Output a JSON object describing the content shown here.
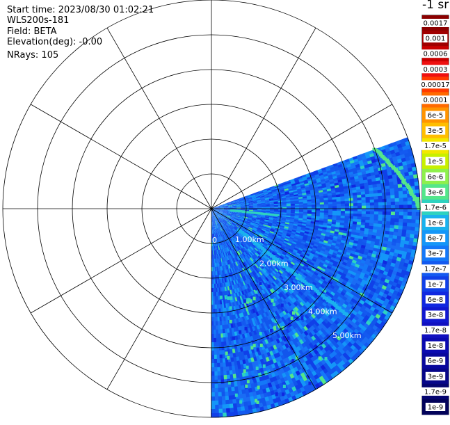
{
  "header": {
    "start_time": "Start time: 2023/08/30 01:02:21",
    "instrument": "WLS200s-181",
    "field": "Field: BETA",
    "elevation": "Elevation(deg): -0.00",
    "nrays": "NRays: 105"
  },
  "colorbar": {
    "unit_label": "-1 sr",
    "labels": [
      "0.0017",
      "0.001",
      "0.0006",
      "0.0003",
      "0.00017",
      "0.0001",
      "6e-5",
      "3e-5",
      "1.7e-5",
      "1e-5",
      "6e-6",
      "3e-6",
      "1.7e-6",
      "1e-6",
      "6e-7",
      "3e-7",
      "1.7e-7",
      "1e-7",
      "6e-8",
      "3e-8",
      "1.7e-8",
      "1e-8",
      "6e-9",
      "3e-9",
      "1.7e-9",
      "1e-9"
    ],
    "colors": [
      "#8b0000",
      "#a00000",
      "#c80000",
      "#ee1010",
      "#ff3a00",
      "#ff6a00",
      "#ff9400",
      "#ffbe00",
      "#f2e800",
      "#c8f000",
      "#8ef04c",
      "#54e68a",
      "#2ed2c0",
      "#1ab2ee",
      "#1496f8",
      "#1478f8",
      "#145af0",
      "#1040e8",
      "#1028e0",
      "#1018d0",
      "#1010c0",
      "#0a0ab0",
      "#08089c",
      "#060688",
      "#040470",
      "#02025a"
    ]
  },
  "chart_data": {
    "type": "heatmap",
    "projection": "polar-ppi",
    "title": "",
    "field": "BETA",
    "range_rings_km": [
      1.0,
      2.0,
      3.0,
      4.0,
      5.0
    ],
    "range_labels": [
      "1.00km",
      "2.00km",
      "3.00km",
      "4.00km",
      "5.00km"
    ],
    "origin_label": "0",
    "azimuth_spoke_step_deg": 30,
    "sector_azimuth_deg": [
      70,
      180
    ],
    "max_range_km": 6.0,
    "dominant_value": "1.7e-8 to 1e-7",
    "features": [
      {
        "name": "distant edge streak",
        "azimuth_deg": [
          70,
          90
        ],
        "range_km_start": 5.0,
        "range_km_end": 6.0,
        "value": "3e-6"
      },
      {
        "name": "near streak",
        "azimuth_deg": 96,
        "range_km": [
          0.6,
          1.9
        ],
        "value": "1.7e-6"
      },
      {
        "name": "diagonal streak",
        "azimuth_deg": 128,
        "range_km": [
          1.0,
          5.0
        ],
        "value": "1e-6"
      }
    ],
    "grid": true,
    "legend": "colorbar-right"
  }
}
